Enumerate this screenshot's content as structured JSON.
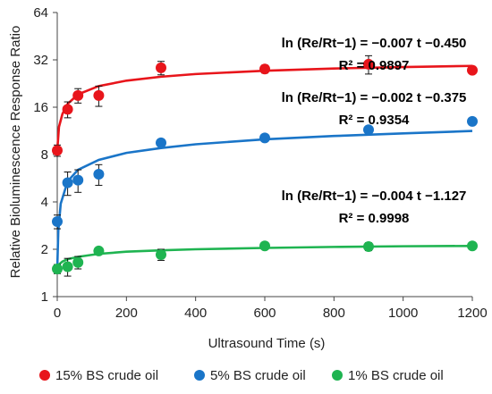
{
  "chart_data": {
    "type": "scatter",
    "title": "",
    "xlabel": "Ultrasound Time (s)",
    "ylabel": "Relative Bioluminescence Response Ratio",
    "xlim": [
      0,
      1200
    ],
    "ylim": [
      1,
      64
    ],
    "yscale": "log2",
    "x_ticks": [
      "0",
      "200",
      "400",
      "600",
      "800",
      "1000",
      "1200"
    ],
    "y_ticks": [
      "1",
      "2",
      "4",
      "8",
      "16",
      "32",
      "64"
    ],
    "grid": false,
    "legend_position": "bottom",
    "x": [
      0,
      30,
      60,
      120,
      300,
      600,
      900,
      1200
    ],
    "series": [
      {
        "name": "15% BS crude oil",
        "color": "#e8151b",
        "values": [
          8.5,
          15.5,
          19.0,
          19.0,
          28.5,
          28.0,
          30.0,
          27.5
        ],
        "errors": [
          0.7,
          1.8,
          2.0,
          2.8,
          2.8,
          1.6,
          4.0,
          1.0
        ],
        "fit": [
          [
            0,
            8.5
          ],
          [
            5,
            12.0
          ],
          [
            15,
            14.5
          ],
          [
            30,
            16.8
          ],
          [
            60,
            19.3
          ],
          [
            120,
            21.8
          ],
          [
            200,
            23.6
          ],
          [
            300,
            25.0
          ],
          [
            400,
            26.0
          ],
          [
            600,
            27.3
          ],
          [
            800,
            28.2
          ],
          [
            1000,
            28.8
          ],
          [
            1200,
            29.3
          ]
        ],
        "equation": "ln (Re/Rt−1) = −0.007 t −0.450",
        "r2": "R² = 0.9897"
      },
      {
        "name": "5% BS crude oil",
        "color": "#1a75c8",
        "values": [
          3.0,
          5.3,
          5.5,
          6.0,
          9.5,
          10.2,
          11.5,
          13.0
        ],
        "errors": [
          0.3,
          0.9,
          0.9,
          0.9,
          0.5,
          0.5,
          0.5,
          0.4
        ],
        "fit": [
          [
            0,
            1.5
          ],
          [
            3,
            2.6
          ],
          [
            10,
            3.9
          ],
          [
            30,
            5.4
          ],
          [
            60,
            6.4
          ],
          [
            120,
            7.4
          ],
          [
            200,
            8.2
          ],
          [
            300,
            8.8
          ],
          [
            400,
            9.3
          ],
          [
            600,
            10.0
          ],
          [
            800,
            10.5
          ],
          [
            1000,
            10.9
          ],
          [
            1200,
            11.3
          ]
        ],
        "equation": "ln (Re/Rt−1) = −0.002 t −0.375",
        "r2": "R² = 0.9354"
      },
      {
        "name": "1% BS crude oil",
        "color": "#1fb451",
        "values": [
          1.5,
          1.55,
          1.65,
          1.95,
          1.85,
          2.1,
          2.08,
          2.1
        ],
        "errors": [
          0.1,
          0.2,
          0.15,
          0.1,
          0.15,
          0.06,
          0.12,
          0.04
        ],
        "fit": [
          [
            0,
            1.5
          ],
          [
            5,
            1.6
          ],
          [
            15,
            1.67
          ],
          [
            30,
            1.73
          ],
          [
            60,
            1.79
          ],
          [
            120,
            1.87
          ],
          [
            200,
            1.93
          ],
          [
            300,
            1.97
          ],
          [
            400,
            2.0
          ],
          [
            600,
            2.04
          ],
          [
            800,
            2.07
          ],
          [
            1000,
            2.09
          ],
          [
            1200,
            2.1
          ]
        ],
        "equation": "ln (Re/Rt−1) = −0.004 t −1.127",
        "r2": "R² = 0.9998"
      }
    ]
  }
}
